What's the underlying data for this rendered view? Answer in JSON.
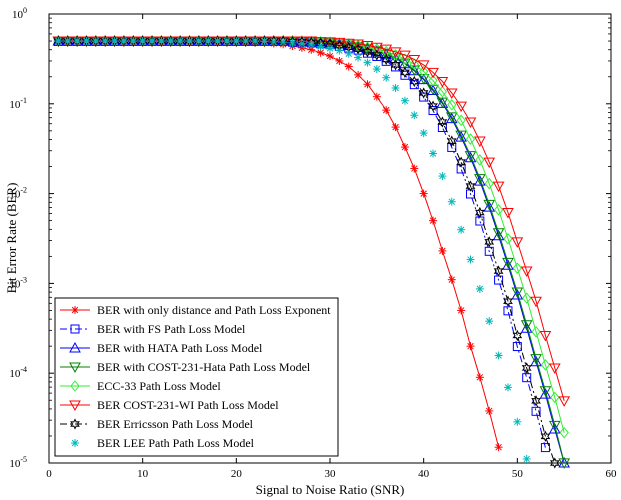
{
  "chart_data": {
    "type": "line",
    "title": "",
    "xlabel": "Signal to Noise Ratio (SNR)",
    "ylabel": "Bit Error Rate (BER)",
    "xlim": [
      0,
      60
    ],
    "ylim": [
      1e-05,
      1
    ],
    "yscale": "log",
    "grid": false,
    "legend_position": "bottom-left",
    "x_ticks": [
      "0",
      "10",
      "20",
      "30",
      "40",
      "50",
      "60"
    ],
    "y_ticks": [
      {
        "base": "10",
        "exp": "0"
      },
      {
        "base": "10",
        "exp": "-1"
      },
      {
        "base": "10",
        "exp": "-2"
      },
      {
        "base": "10",
        "exp": "-3"
      },
      {
        "base": "10",
        "exp": "-4"
      },
      {
        "base": "10",
        "exp": "-5"
      }
    ],
    "x": [
      1,
      2,
      3,
      4,
      5,
      6,
      7,
      8,
      9,
      10,
      11,
      12,
      13,
      14,
      15,
      16,
      17,
      18,
      19,
      20,
      21,
      22,
      23,
      24,
      25,
      26,
      27,
      28,
      29,
      30,
      31,
      32,
      33,
      34,
      35,
      36,
      37,
      38,
      39,
      40,
      41,
      42,
      43,
      44,
      45,
      46,
      47,
      48,
      49,
      50,
      51,
      52,
      53,
      54,
      55
    ],
    "series": [
      {
        "name": "BER with only distance and Path Loss Exponent",
        "color": "#ff0000",
        "marker": "asterisk",
        "line": "solid",
        "shift": 0,
        "scale": 1.0
      },
      {
        "name": "BER with FS Path Loss Model",
        "color": "#0000ff",
        "marker": "square",
        "line": "dashdot",
        "shift": 5,
        "scale": 0.99
      },
      {
        "name": "BER with HATA Path Loss Model",
        "color": "#0000ff",
        "marker": "triangle-up",
        "line": "solid",
        "shift": 6.5,
        "scale": 1.0
      },
      {
        "name": "BER with COST-231-Hata Path Loss Model",
        "color": "#008000",
        "marker": "triangle-down",
        "line": "solid",
        "shift": 6.6,
        "scale": 1.0
      },
      {
        "name": "ECC-33 Path Loss Model",
        "color": "#33ee33",
        "marker": "diamond",
        "line": "solid",
        "shift": 7.4,
        "scale": 1.0
      },
      {
        "name": "BER COST-231-WI Path Loss Model",
        "color": "#ff0000",
        "marker": "triangle-down",
        "line": "solid",
        "shift": 8.3,
        "scale": 1.0
      },
      {
        "name": "BER Erricsson Path Loss Model",
        "color": "#000000",
        "marker": "hexagram",
        "line": "dashdot",
        "shift": 5.3,
        "scale": 1.0
      },
      {
        "name": "BER LEE Path Path Loss Model",
        "color": "#00b8b8",
        "marker": "asterisk",
        "line": "none",
        "shift": 2.7,
        "scale": 1.0
      }
    ],
    "base_curve": [
      0.5,
      0.5,
      0.5,
      0.5,
      0.5,
      0.5,
      0.5,
      0.5,
      0.5,
      0.5,
      0.5,
      0.5,
      0.5,
      0.5,
      0.5,
      0.5,
      0.5,
      0.5,
      0.5,
      0.5,
      0.49,
      0.49,
      0.48,
      0.47,
      0.46,
      0.44,
      0.42,
      0.4,
      0.37,
      0.34,
      0.3,
      0.26,
      0.21,
      0.165,
      0.12,
      0.085,
      0.055,
      0.033,
      0.019,
      0.01,
      0.005,
      0.0023,
      0.0011,
      0.0005,
      0.0002,
      9e-05,
      3.8e-05,
      1.5e-05,
      5.5e-06,
      1.9e-06
    ]
  }
}
